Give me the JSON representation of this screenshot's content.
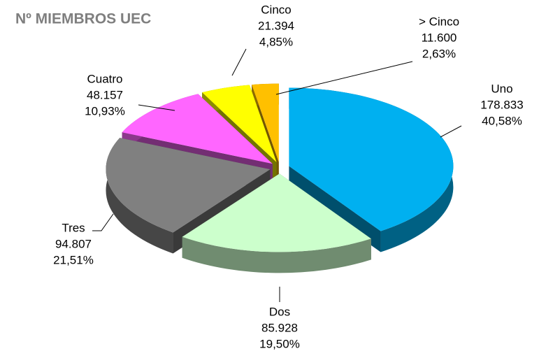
{
  "chart_data": {
    "type": "pie",
    "title": "Nº MIEMBROS UEC",
    "categories": [
      "Uno",
      "Dos",
      "Tres",
      "Cuatro",
      "Cinco",
      "> Cinco"
    ],
    "values": [
      178833,
      85928,
      94807,
      48157,
      21394,
      11600
    ],
    "value_labels": [
      "178.833",
      "85.928",
      "94.807",
      "48.157",
      "21.394",
      "11.600"
    ],
    "percents": [
      40.58,
      19.5,
      21.51,
      10.93,
      4.85,
      2.63
    ],
    "percent_labels": [
      "40,58%",
      "19,50%",
      "21,51%",
      "10,93%",
      "4,85%",
      "2,63%"
    ],
    "colors": [
      "#00b0f0",
      "#ccffcc",
      "#808080",
      "#ff66ff",
      "#ffff00",
      "#ffc000"
    ]
  }
}
